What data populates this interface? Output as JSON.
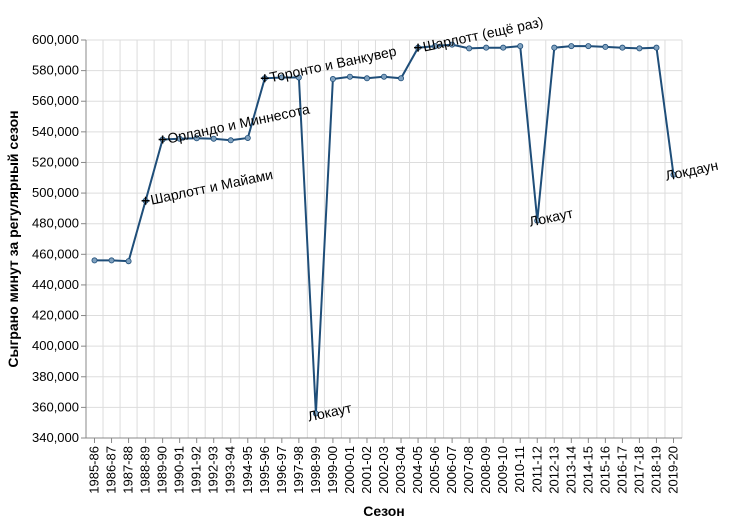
{
  "chart_data": {
    "type": "line",
    "xlabel": "Сезон",
    "ylabel": "Сыграно минут за регулярный сезон",
    "ylim": [
      340000,
      600000
    ],
    "yticks": [
      340000,
      360000,
      380000,
      400000,
      420000,
      440000,
      460000,
      480000,
      500000,
      520000,
      540000,
      560000,
      580000,
      600000
    ],
    "ytick_labels": [
      "340,000",
      "360,000",
      "380,000",
      "400,000",
      "420,000",
      "440,000",
      "460,000",
      "480,000",
      "500,000",
      "520,000",
      "540,000",
      "560,000",
      "580,000",
      "600,000"
    ],
    "grid": true,
    "categories": [
      "1985-86",
      "1986-87",
      "1987-88",
      "1988-89",
      "1989-90",
      "1990-91",
      "1991-92",
      "1992-93",
      "1993-94",
      "1994-95",
      "1995-96",
      "1996-97",
      "1997-98",
      "1998-99",
      "1999-00",
      "2000-01",
      "2001-02",
      "2002-03",
      "2003-04",
      "2004-05",
      "2005-06",
      "2006-07",
      "2007-08",
      "2008-09",
      "2009-10",
      "2010-11",
      "2011-12",
      "2012-13",
      "2013-14",
      "2014-15",
      "2015-16",
      "2016-17",
      "2017-18",
      "2018-19",
      "2019-20"
    ],
    "series": [
      {
        "color": "#1f4e79",
        "marker_color": "#7fa1bf",
        "values": [
          456000,
          456000,
          455500,
          495000,
          535000,
          535500,
          535800,
          535500,
          534500,
          536000,
          575000,
          575500,
          575500,
          356000,
          574500,
          576000,
          575000,
          576000,
          575000,
          595000,
          596000,
          597000,
          594500,
          595000,
          595000,
          596000,
          482000,
          595000,
          596000,
          596000,
          595500,
          595000,
          594500,
          595000,
          512000
        ]
      }
    ],
    "annotations": [
      {
        "text": "Шарлотт и Майами",
        "x": "1988-89",
        "y": 495000,
        "marker": true,
        "rotation": -12
      },
      {
        "text": "Орландо и Миннесота",
        "x": "1989-90",
        "y": 535000,
        "marker": true,
        "rotation": -12
      },
      {
        "text": "Торонто и Ванкувер",
        "x": "1995-96",
        "y": 575000,
        "marker": true,
        "rotation": -12
      },
      {
        "text": "Шарлотт (ещё раз)",
        "x": "2004-05",
        "y": 595000,
        "marker": true,
        "rotation": -12
      },
      {
        "text": "Локаут",
        "x": "1998-99",
        "y": 356000,
        "marker": false,
        "rotation": -12
      },
      {
        "text": "Локаут",
        "x": "2011-12",
        "y": 482000,
        "marker": false,
        "rotation": -12
      },
      {
        "text": "Локдаун",
        "x": "2019-20",
        "y": 512000,
        "marker": false,
        "rotation": -12
      }
    ]
  }
}
